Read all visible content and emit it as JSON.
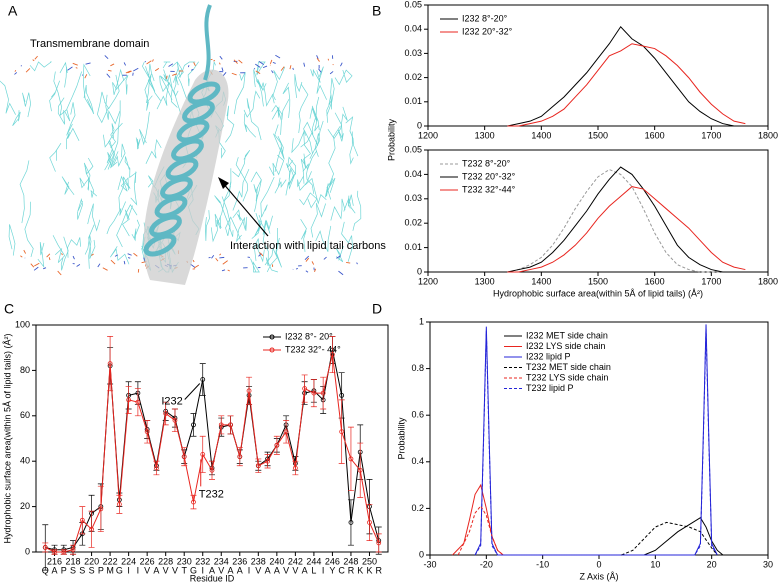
{
  "panel_labels": [
    "A",
    "B",
    "C",
    "D"
  ],
  "image": {
    "title": "Transmembrane domain",
    "annotation": "Interaction with lipid tail carbons"
  },
  "chart_data": [
    {
      "type": "line",
      "y_label": "Probability",
      "legend": "upper left",
      "xlim": [
        1200,
        1800
      ],
      "xticks": [
        1200,
        1300,
        1400,
        1500,
        1600,
        1700,
        1800
      ],
      "ylim": [
        0,
        0.05
      ],
      "yticks": [
        0,
        0.01,
        0.02,
        0.03,
        0.04,
        0.05
      ],
      "x": [
        1340,
        1360,
        1380,
        1400,
        1420,
        1440,
        1460,
        1480,
        1500,
        1520,
        1540,
        1560,
        1580,
        1600,
        1620,
        1640,
        1660,
        1680,
        1700,
        1720,
        1740,
        1760
      ],
      "series": [
        {
          "name": "I232 8°-20°",
          "color": "#000000",
          "linestyle": "solid",
          "values": [
            0,
            0.001,
            0.002,
            0.004,
            0.008,
            0.012,
            0.017,
            0.022,
            0.028,
            0.034,
            0.041,
            0.036,
            0.033,
            0.028,
            0.022,
            0.016,
            0.01,
            0.006,
            0.003,
            0.001,
            0,
            0
          ]
        },
        {
          "name": "I232 20°-32°",
          "color": "#e8251f",
          "linestyle": "solid",
          "values": [
            0,
            0,
            0.001,
            0.002,
            0.004,
            0.007,
            0.012,
            0.017,
            0.023,
            0.029,
            0.031,
            0.034,
            0.033,
            0.032,
            0.029,
            0.025,
            0.02,
            0.014,
            0.009,
            0.005,
            0.002,
            0.001
          ]
        }
      ]
    },
    {
      "type": "line",
      "x_label": "Hydrophobic surface area(within 5Å of lipid tails) (Å²)",
      "legend": "upper left",
      "xlim": [
        1200,
        1800
      ],
      "xticks": [
        1200,
        1300,
        1400,
        1500,
        1600,
        1700,
        1800
      ],
      "ylim": [
        0,
        0.05
      ],
      "yticks": [
        0,
        0.01,
        0.02,
        0.03,
        0.04,
        0.05
      ],
      "x": [
        1340,
        1360,
        1380,
        1400,
        1420,
        1440,
        1460,
        1480,
        1500,
        1520,
        1540,
        1560,
        1580,
        1600,
        1620,
        1640,
        1660,
        1680,
        1700,
        1720,
        1740,
        1760
      ],
      "series": [
        {
          "name": "T232 8°-20°",
          "color": "#999999",
          "linestyle": "dashed",
          "values": [
            0,
            0.001,
            0.003,
            0.006,
            0.011,
            0.018,
            0.026,
            0.033,
            0.039,
            0.042,
            0.04,
            0.035,
            0.026,
            0.016,
            0.008,
            0.003,
            0.001,
            0,
            0,
            0,
            0,
            0
          ]
        },
        {
          "name": "T232 20°-32°",
          "color": "#000000",
          "linestyle": "solid",
          "values": [
            0,
            0.001,
            0.002,
            0.004,
            0.008,
            0.013,
            0.019,
            0.025,
            0.032,
            0.038,
            0.043,
            0.04,
            0.034,
            0.027,
            0.019,
            0.011,
            0.006,
            0.003,
            0.001,
            0,
            0,
            0
          ]
        },
        {
          "name": "T232 32°-44°",
          "color": "#e8251f",
          "linestyle": "solid",
          "values": [
            0,
            0,
            0.001,
            0.002,
            0.004,
            0.007,
            0.011,
            0.016,
            0.022,
            0.027,
            0.031,
            0.035,
            0.034,
            0.03,
            0.026,
            0.022,
            0.018,
            0.013,
            0.008,
            0.004,
            0.002,
            0.001
          ]
        }
      ]
    },
    {
      "type": "errorline",
      "x_label": "Residue ID",
      "y_label": "Hydrophobic surface area(within 5Å of lipid tails) (Å²)",
      "legend": "upper right",
      "marker": "circle",
      "annotations": [
        "I232",
        "T232"
      ],
      "xlim": [
        214,
        252
      ],
      "xticks": [
        216,
        218,
        220,
        222,
        224,
        226,
        228,
        230,
        232,
        234,
        236,
        238,
        240,
        242,
        244,
        246,
        248,
        250
      ],
      "ylim": [
        0,
        100
      ],
      "yticks": [
        0,
        20,
        40,
        60,
        80,
        100
      ],
      "x": [
        215,
        216,
        217,
        218,
        219,
        220,
        221,
        222,
        223,
        224,
        225,
        226,
        227,
        228,
        229,
        230,
        231,
        232,
        233,
        234,
        235,
        236,
        237,
        238,
        239,
        240,
        241,
        242,
        243,
        244,
        245,
        246,
        247,
        248,
        249,
        250,
        251
      ],
      "residues": [
        "Q",
        "A",
        "P",
        "S",
        "S",
        "S",
        "P",
        "M",
        "G",
        "I",
        "I",
        "V",
        "A",
        "V",
        "V",
        "T",
        "G",
        "I",
        "A",
        "V",
        "A",
        "A",
        "I",
        "V",
        "A",
        "A",
        "V",
        "V",
        "A",
        "L",
        "I",
        "Y",
        "C",
        "R",
        "K",
        "K",
        "R"
      ],
      "series": [
        {
          "name": "I232 8°- 20°",
          "color": "#000000",
          "values": [
            2,
            1,
            1,
            2,
            8,
            17,
            20,
            82,
            23,
            69,
            70,
            54,
            38,
            62,
            59,
            42,
            56,
            76,
            37,
            55,
            56,
            42,
            69,
            38,
            41,
            47,
            56,
            39,
            70,
            71,
            67,
            89,
            69,
            13,
            44,
            20,
            5
          ],
          "errors": [
            10,
            2,
            2,
            3,
            5,
            8,
            10,
            8,
            3,
            6,
            5,
            4,
            2,
            4,
            4,
            3,
            5,
            7,
            3,
            4,
            4,
            3,
            4,
            2,
            3,
            3,
            4,
            3,
            5,
            5,
            6,
            6,
            10,
            10,
            12,
            12,
            6
          ]
        },
        {
          "name": "T232 32°- 44°",
          "color": "#e8251f",
          "values": [
            2,
            0,
            0,
            1,
            14,
            10,
            19,
            83,
            21,
            67,
            66,
            53,
            37,
            61,
            58,
            42,
            22,
            43,
            36,
            56,
            56,
            42,
            71,
            38,
            40,
            47,
            53,
            37,
            72,
            70,
            70,
            87,
            53,
            41,
            36,
            13,
            4
          ],
          "errors": [
            2,
            1,
            1,
            2,
            6,
            8,
            10,
            12,
            4,
            6,
            6,
            5,
            3,
            5,
            5,
            4,
            3,
            8,
            4,
            4,
            4,
            4,
            6,
            3,
            3,
            4,
            5,
            3,
            6,
            6,
            7,
            8,
            14,
            14,
            12,
            8,
            4
          ]
        }
      ]
    },
    {
      "type": "line",
      "x_label": "Z Axis (Å)",
      "y_label": "Probability",
      "legend": "upper center",
      "xlim": [
        -30,
        30
      ],
      "xticks": [
        -30,
        -20,
        -10,
        0,
        10,
        20,
        30
      ],
      "ylim": [
        0,
        1
      ],
      "yticks": [
        0,
        0.2,
        0.4,
        0.6,
        0.8,
        1
      ],
      "series": [
        {
          "name": "I232 MET side chain",
          "color": "#000000",
          "linestyle": "solid",
          "x": [
            8,
            10,
            12,
            14,
            16,
            18,
            19,
            20,
            21,
            22
          ],
          "values": [
            0,
            0.02,
            0.06,
            0.1,
            0.13,
            0.16,
            0.12,
            0.06,
            0.02,
            0
          ]
        },
        {
          "name": "I232 LYS side chain",
          "color": "#e8251f",
          "linestyle": "solid",
          "x": [
            -26,
            -24,
            -23,
            -22,
            -21,
            -20,
            -19,
            -18,
            -17
          ],
          "values": [
            0,
            0.05,
            0.15,
            0.26,
            0.3,
            0.2,
            0.08,
            0.02,
            0
          ]
        },
        {
          "name": "I232 lipid P",
          "color": "#2424d8",
          "linestyle": "solid",
          "x": [
            -22,
            -21,
            -20.5,
            -20,
            -19.5,
            -19,
            -18,
            17,
            18,
            18.5,
            19,
            19.5,
            20,
            21
          ],
          "values": [
            0,
            0.05,
            0.5,
            0.98,
            0.5,
            0.05,
            0,
            0,
            0.05,
            0.5,
            0.99,
            0.5,
            0.05,
            0
          ]
        },
        {
          "name": "T232 MET side chain",
          "color": "#000000",
          "linestyle": "dashed",
          "x": [
            4,
            6,
            8,
            10,
            12,
            14,
            16,
            18,
            20,
            21
          ],
          "values": [
            0,
            0.02,
            0.07,
            0.12,
            0.14,
            0.13,
            0.12,
            0.1,
            0.03,
            0
          ]
        },
        {
          "name": "T232 LYS side chain",
          "color": "#e8251f",
          "linestyle": "dashed",
          "x": [
            -25,
            -23,
            -22,
            -21,
            -20,
            -19,
            -18,
            -17
          ],
          "values": [
            0,
            0.1,
            0.18,
            0.21,
            0.17,
            0.08,
            0.02,
            0
          ]
        },
        {
          "name": "T232 lipid P",
          "color": "#2424d8",
          "linestyle": "dashed",
          "x": [
            -22,
            -21,
            -20.5,
            -20,
            -19.5,
            -19,
            -18,
            17,
            18,
            18.5,
            19,
            19.5,
            20,
            21
          ],
          "values": [
            0,
            0.04,
            0.48,
            0.96,
            0.48,
            0.04,
            0,
            0,
            0.04,
            0.48,
            0.97,
            0.48,
            0.04,
            0
          ]
        }
      ]
    }
  ]
}
